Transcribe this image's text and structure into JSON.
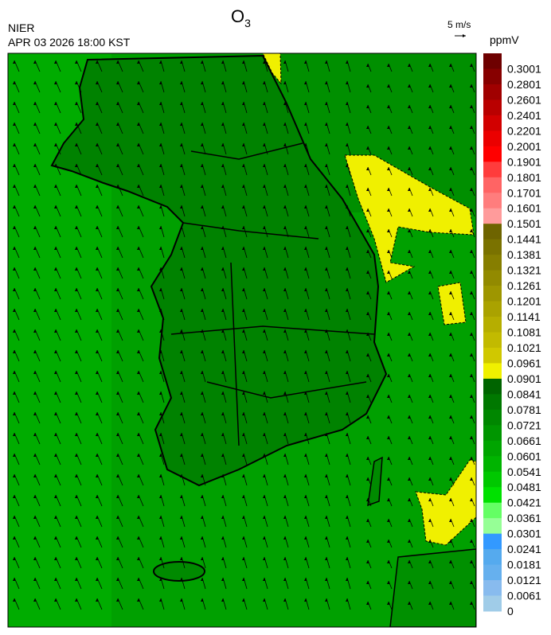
{
  "header": {
    "title": "O",
    "title_sub": "3",
    "agency": "NIER",
    "datetime": "APR 03 2026 18:00 KST"
  },
  "wind_scale": {
    "label": "5 m/s"
  },
  "colorbar": {
    "unit": "ppmV",
    "labels": [
      "0.3001",
      "0.2801",
      "0.2601",
      "0.2401",
      "0.2201",
      "0.2001",
      "0.1901",
      "0.1801",
      "0.1701",
      "0.1601",
      "0.1501",
      "0.1441",
      "0.1381",
      "0.1321",
      "0.1261",
      "0.1201",
      "0.1141",
      "0.1081",
      "0.1021",
      "0.0961",
      "0.0901",
      "0.0841",
      "0.0781",
      "0.0721",
      "0.0661",
      "0.0601",
      "0.0541",
      "0.0481",
      "0.0421",
      "0.0361",
      "0.0301",
      "0.0241",
      "0.0181",
      "0.0121",
      "0.0061",
      "0"
    ],
    "colors": [
      "#6e0000",
      "#870000",
      "#a00000",
      "#b90000",
      "#d20000",
      "#eb0000",
      "#ff0000",
      "#ff3c3c",
      "#ff6464",
      "#ff7d7d",
      "#ff9b9b",
      "#6e6400",
      "#7a7200",
      "#867e00",
      "#928a00",
      "#9e9600",
      "#aaa200",
      "#b6ae00",
      "#c2ba00",
      "#d0c800",
      "#f0f000",
      "#006400",
      "#007800",
      "#008700",
      "#009600",
      "#00a500",
      "#00b400",
      "#00c800",
      "#00e100",
      "#64ff64",
      "#96ff96",
      "#3399ff",
      "#55aaee",
      "#66b0ee",
      "#88bbee",
      "#a0cce8"
    ]
  }
}
